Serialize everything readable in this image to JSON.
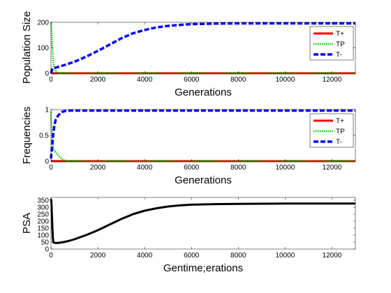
{
  "chart_data": [
    {
      "type": "line",
      "ylabel": "Population Size",
      "xlabel": "Generations",
      "xlim": [
        0,
        13000
      ],
      "ylim": [
        0,
        200
      ],
      "xticks": [
        0,
        2000,
        4000,
        6000,
        8000,
        10000,
        12000
      ],
      "yticks": [
        0,
        100,
        200
      ],
      "legend": "top-right",
      "series": [
        {
          "name": "T+",
          "color": "#ff0000",
          "style": "solid",
          "x": [
            0,
            13000
          ],
          "y": [
            0,
            0
          ]
        },
        {
          "name": "TP",
          "color": "#00cc00",
          "style": "dotted",
          "x": [
            0,
            20,
            40,
            60,
            80,
            100,
            150,
            200,
            300,
            13000
          ],
          "y": [
            200,
            180,
            140,
            100,
            70,
            45,
            20,
            8,
            0,
            0
          ]
        },
        {
          "name": "T-",
          "color": "#0000ff",
          "style": "dashed",
          "x": [
            0,
            50,
            100,
            200,
            500,
            1000,
            1500,
            2000,
            2500,
            3000,
            3500,
            4000,
            4500,
            5000,
            5500,
            6000,
            7000,
            8000,
            10000,
            13000
          ],
          "y": [
            0,
            15,
            20,
            22,
            30,
            45,
            65,
            88,
            112,
            137,
            157,
            170,
            180,
            186,
            190,
            193,
            195,
            196,
            196,
            196
          ]
        }
      ]
    },
    {
      "type": "line",
      "ylabel": "Frequencies",
      "xlabel": "Generations",
      "xlim": [
        0,
        13000
      ],
      "ylim": [
        0,
        1
      ],
      "xticks": [
        0,
        2000,
        4000,
        6000,
        8000,
        10000,
        12000
      ],
      "yticks": [
        0,
        0.5,
        1
      ],
      "legend": "top-right",
      "series": [
        {
          "name": "T+",
          "color": "#ff0000",
          "style": "solid",
          "x": [
            0,
            13000
          ],
          "y": [
            0,
            0
          ]
        },
        {
          "name": "TP",
          "color": "#00cc00",
          "style": "dotted",
          "x": [
            0,
            20,
            50,
            100,
            150,
            200,
            300,
            400,
            500,
            600,
            700,
            13000
          ],
          "y": [
            0.95,
            0.7,
            0.45,
            0.25,
            0.2,
            0.17,
            0.12,
            0.07,
            0.03,
            0.01,
            0,
            0
          ]
        },
        {
          "name": "T-",
          "color": "#0000ff",
          "style": "dashed",
          "x": [
            0,
            50,
            100,
            150,
            200,
            300,
            400,
            500,
            600,
            800,
            1000,
            2000,
            13000
          ],
          "y": [
            0.05,
            0.3,
            0.55,
            0.7,
            0.8,
            0.88,
            0.93,
            0.96,
            0.97,
            0.98,
            0.98,
            0.98,
            0.98
          ]
        }
      ]
    },
    {
      "type": "line",
      "ylabel": "PSA",
      "xlabel": "Gentime;erations",
      "xlim": [
        0,
        13000
      ],
      "ylim": [
        0,
        370
      ],
      "xticks": [
        0,
        2000,
        4000,
        6000,
        8000,
        10000,
        12000
      ],
      "yticks": [
        0,
        50,
        100,
        150,
        200,
        250,
        300,
        350
      ],
      "legend": "none",
      "series": [
        {
          "color": "#000000",
          "style": "solid",
          "x": [
            0,
            20,
            40,
            60,
            80,
            100,
            150,
            200,
            300,
            400,
            600,
            800,
            1000,
            1500,
            2000,
            2500,
            3000,
            3500,
            4000,
            4500,
            5000,
            5500,
            6000,
            7000,
            8000,
            9000,
            10000,
            11000,
            12000,
            13000
          ],
          "y": [
            360,
            330,
            250,
            160,
            80,
            48,
            45,
            44,
            44,
            46,
            52,
            60,
            70,
            100,
            135,
            175,
            215,
            250,
            275,
            292,
            305,
            313,
            318,
            322,
            324,
            325,
            326,
            326,
            326,
            326
          ]
        }
      ]
    }
  ]
}
